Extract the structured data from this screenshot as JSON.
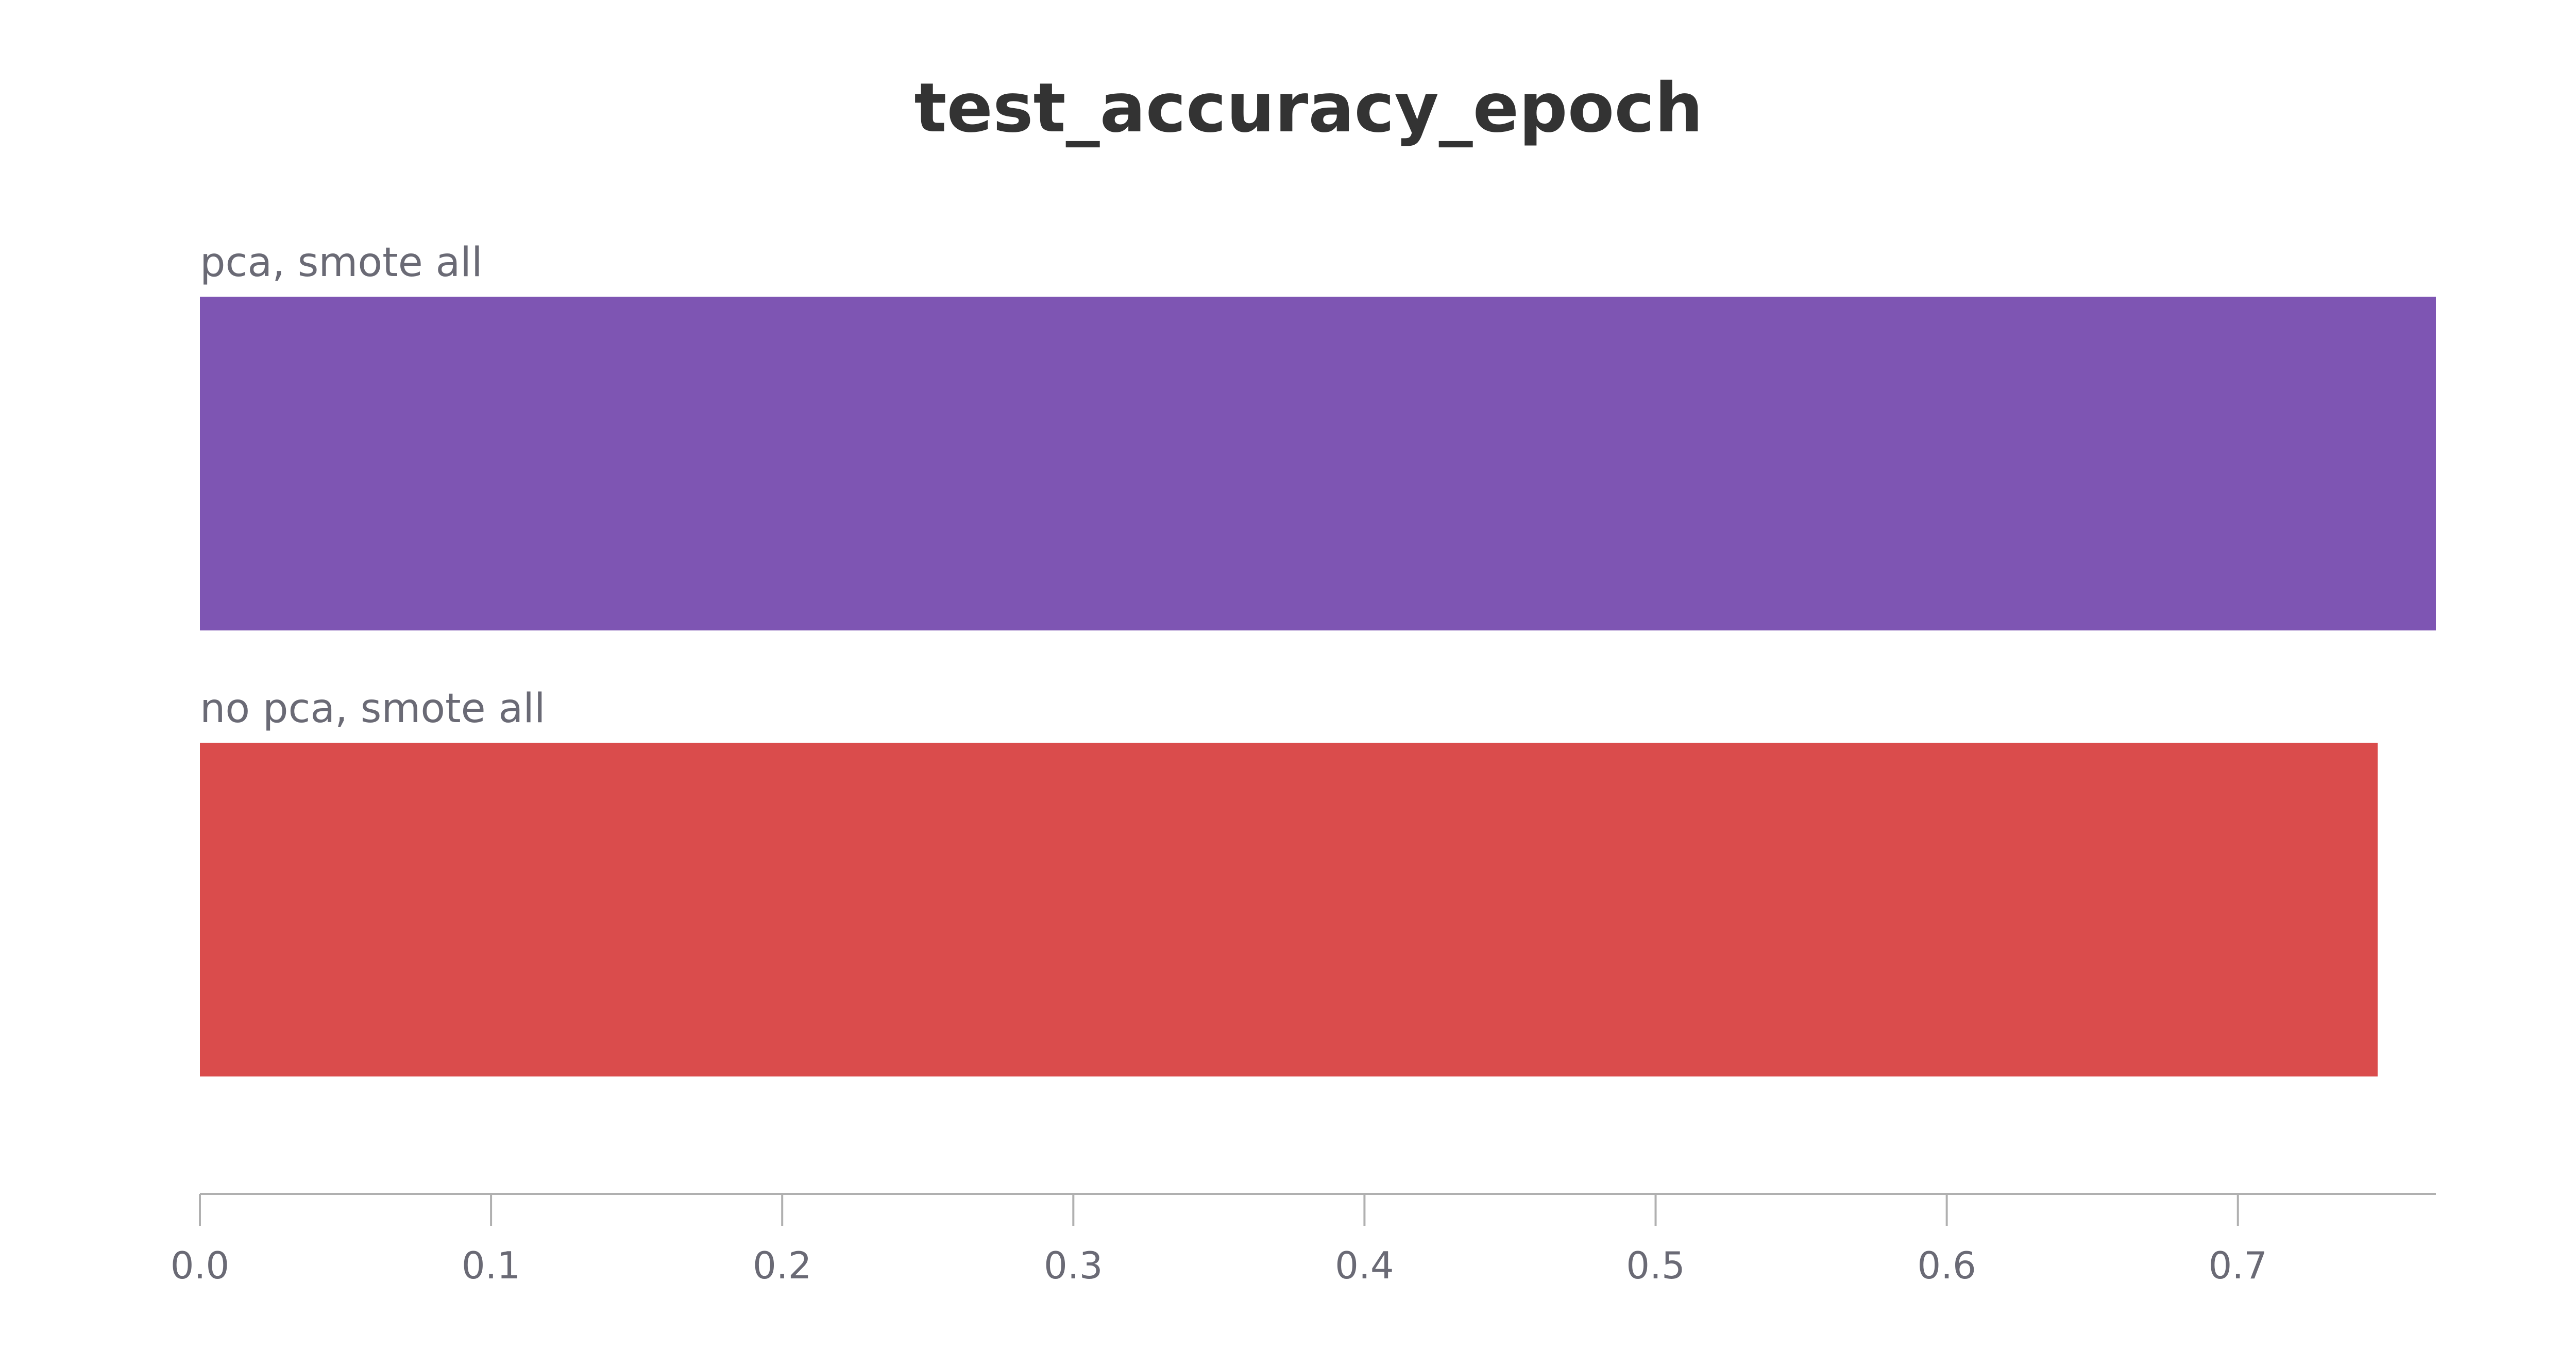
{
  "chart_data": {
    "type": "bar",
    "orientation": "horizontal",
    "title": "test_accuracy_epoch",
    "xlabel": "",
    "ylabel": "",
    "categories": [
      "pca, smote all",
      "no pca, smote all"
    ],
    "values": [
      0.768,
      0.748
    ],
    "colors": [
      "#7e55b3",
      "#da4c4c"
    ],
    "xlim": [
      0,
      0.768
    ],
    "xticks": [
      0.0,
      0.1,
      0.2,
      0.3,
      0.4,
      0.5,
      0.6,
      0.7
    ],
    "xtick_labels": [
      "0.0",
      "0.1",
      "0.2",
      "0.3",
      "0.4",
      "0.5",
      "0.6",
      "0.7"
    ],
    "grid": false,
    "legend": "none"
  }
}
